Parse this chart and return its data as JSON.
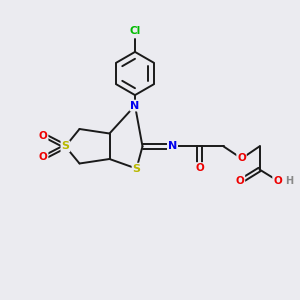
{
  "bg_color": "#ebebf0",
  "bond_color": "#1a1a1a",
  "atom_colors": {
    "S": "#b8b800",
    "N": "#0000ee",
    "O": "#ee0000",
    "Cl": "#00bb00",
    "H": "#888888",
    "C": "#1a1a1a"
  },
  "figsize": [
    3.0,
    3.0
  ],
  "dpi": 100,
  "xlim": [
    0,
    10
  ],
  "ylim": [
    0,
    10
  ]
}
